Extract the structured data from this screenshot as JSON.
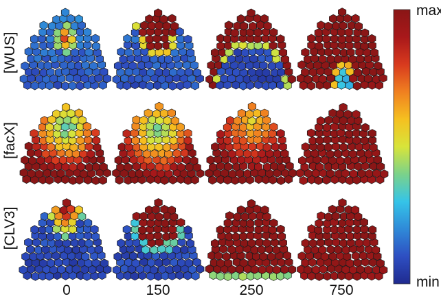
{
  "rows": [
    {
      "label": "[WUS]",
      "pattern": "wus"
    },
    {
      "label": "[facX]",
      "pattern": "facx"
    },
    {
      "label": "[CLV3]",
      "pattern": "clv3"
    }
  ],
  "columns": [
    "0",
    "150",
    "250",
    "750"
  ],
  "colorbar": {
    "max_label": "max",
    "min_label": "min"
  },
  "colormap": [
    "#1f2a8f",
    "#2e4fc2",
    "#2f8ad8",
    "#35c4e8",
    "#7bd28a",
    "#d8e43a",
    "#f5c020",
    "#f08020",
    "#d83a1e",
    "#a8181a",
    "#8a1616"
  ],
  "cell_outline_color": "#1a1a1a"
}
